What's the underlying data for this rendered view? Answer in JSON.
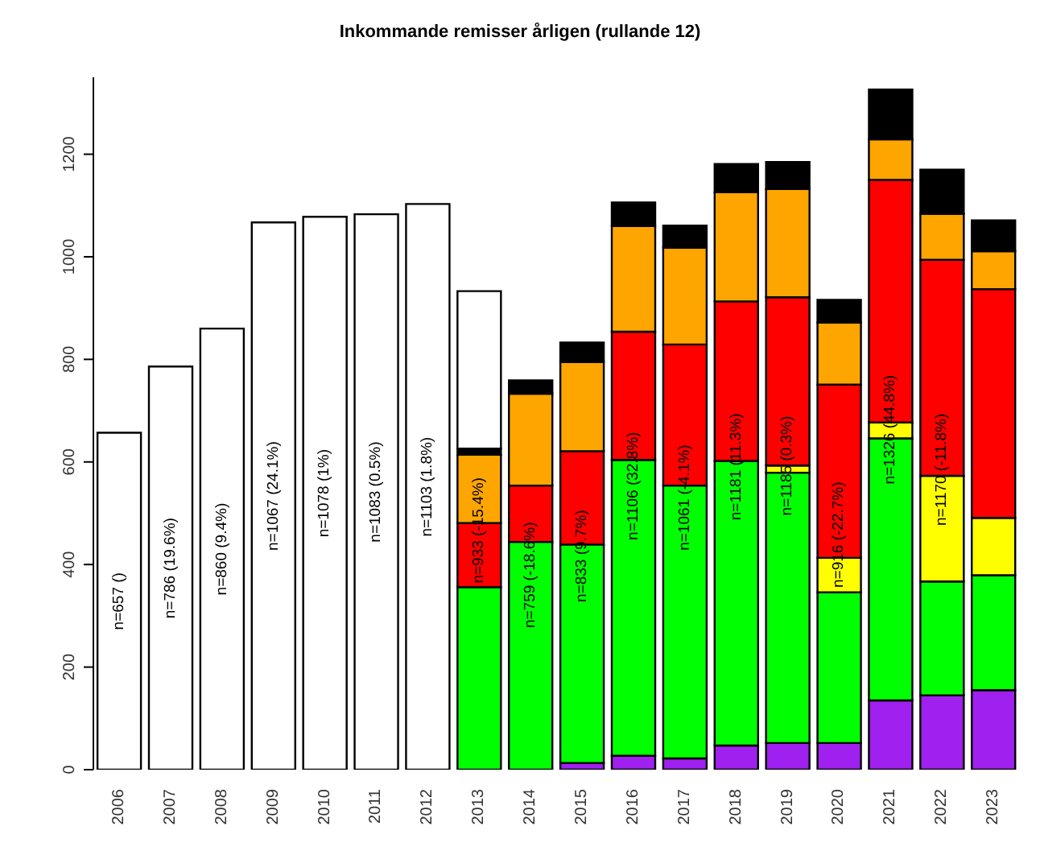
{
  "chart_data": {
    "type": "bar",
    "title": "Inkommande remisser årligen (rullande 12)",
    "stacked": true,
    "categories": [
      "2006",
      "2007",
      "2008",
      "2009",
      "2010",
      "2011",
      "2012",
      "2013",
      "2014",
      "2015",
      "2016",
      "2017",
      "2018",
      "2019",
      "2020",
      "2021",
      "2022",
      "2023"
    ],
    "series": [
      {
        "color": "#a020f0",
        "values": [
          null,
          null,
          null,
          null,
          null,
          null,
          null,
          null,
          null,
          13,
          27,
          22,
          47,
          52,
          52,
          135,
          145,
          155
        ]
      },
      {
        "color": "#00ff00",
        "values": [
          null,
          null,
          null,
          null,
          null,
          null,
          null,
          356,
          444,
          426,
          577,
          532,
          555,
          527,
          294,
          511,
          222,
          224
        ]
      },
      {
        "color": "#ffff00",
        "values": [
          null,
          null,
          null,
          null,
          null,
          null,
          null,
          null,
          null,
          null,
          null,
          null,
          null,
          14,
          67,
          31,
          206,
          112
        ]
      },
      {
        "color": "#ff0000",
        "values": [
          null,
          null,
          null,
          null,
          null,
          null,
          null,
          125,
          110,
          182,
          250,
          275,
          311,
          328,
          338,
          473,
          421,
          446
        ]
      },
      {
        "color": "#ffa500",
        "values": [
          null,
          null,
          null,
          null,
          null,
          null,
          null,
          133,
          179,
          174,
          206,
          189,
          213,
          211,
          121,
          79,
          90,
          74
        ]
      },
      {
        "color": "#000000",
        "values": [
          null,
          null,
          null,
          null,
          null,
          null,
          null,
          12,
          26,
          38,
          46,
          43,
          55,
          53,
          44,
          97,
          86,
          60
        ]
      },
      {
        "color": "#ffffff",
        "values": [
          657,
          786,
          860,
          1067,
          1078,
          1083,
          1103,
          307,
          null,
          null,
          null,
          null,
          null,
          null,
          null,
          null,
          null,
          null
        ]
      }
    ],
    "totals": [
      "n=657 ()",
      "n=786 (19.6%)",
      "n=860 (9.4%)",
      "n=1067 (24.1%)",
      "n=1078 (1%)",
      "n=1083 (0.5%)",
      "n=1103 (1.8%)",
      "n=933 (-15.4%)",
      "n=759 (-18.6%)",
      "n=833 (9.7%)",
      "n=1106 (32.8%)",
      "n=1061 (-4.1%)",
      "n=1181 (11.3%)",
      "n=1185 (0.3%)",
      "n=916 (-22.7%)",
      "n=1326 (44.8%)",
      "n=1170 (-11.8%)",
      null
    ],
    "ylim": [
      0,
      1350
    ],
    "yticks": [
      0,
      200,
      400,
      600,
      800,
      1000,
      1200
    ],
    "grid": false
  }
}
